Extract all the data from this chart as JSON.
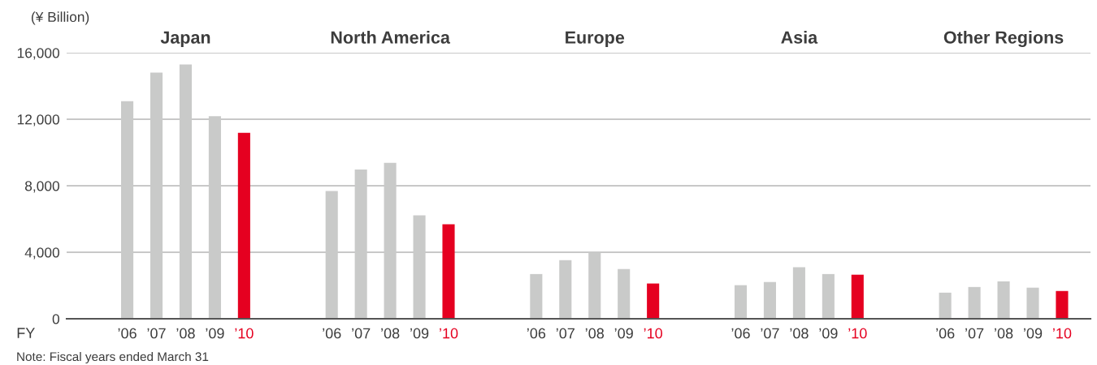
{
  "chart_data": {
    "type": "bar",
    "ylabel": "(¥ Billion)",
    "xlabel": "FY",
    "categories": [
      "Japan",
      "North America",
      "Europe",
      "Asia",
      "Other Regions"
    ],
    "series": [
      {
        "name": "’06",
        "color": "#c9cac9",
        "values": [
          13090,
          7680,
          2690,
          2020,
          1570
        ]
      },
      {
        "name": "’07",
        "color": "#c9cac9",
        "values": [
          14800,
          8970,
          3520,
          2210,
          1910
        ]
      },
      {
        "name": "’08",
        "color": "#c9cac9",
        "values": [
          15290,
          9380,
          3990,
          3100,
          2250
        ]
      },
      {
        "name": "’09",
        "color": "#c9cac9",
        "values": [
          12180,
          6220,
          2990,
          2690,
          1870
        ]
      },
      {
        "name": "’10",
        "color": "#e50020",
        "values": [
          11180,
          5680,
          2120,
          2650,
          1670
        ]
      }
    ],
    "ylim": [
      0,
      16000
    ],
    "yticks": [
      0,
      {
        "value": 4000,
        "label": "4,000"
      },
      {
        "value": 8000,
        "label": "8,000"
      },
      {
        "value": 12000,
        "label": "12,000"
      },
      {
        "value": 16000,
        "label": "16,000"
      }
    ],
    "grid": "y",
    "annotations": [
      "Note: Fiscal years ended March 31"
    ]
  }
}
